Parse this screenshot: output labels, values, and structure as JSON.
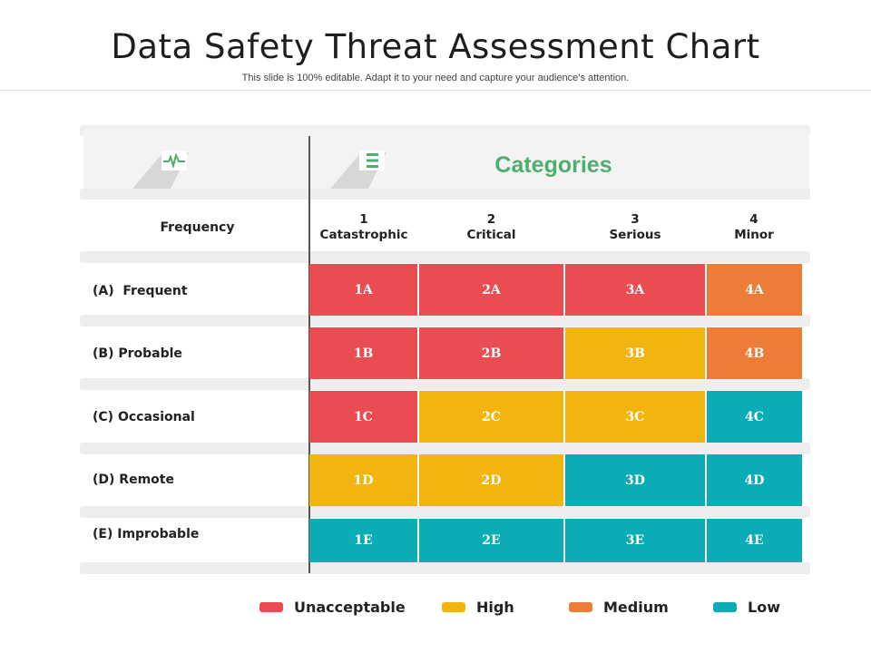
{
  "slide": {
    "title": "Data Safety Threat Assessment Chart",
    "subtitle": "This slide is 100% editable. Adapt it to your need and capture your audience’s attention."
  },
  "icons": {
    "frequency_icon": "pulse-icon",
    "categories_icon": "list-icon"
  },
  "header": {
    "categories": "Categories",
    "frequency": "Frequency"
  },
  "columns": [
    {
      "num": "1",
      "label": "Catastrophic"
    },
    {
      "num": "2",
      "label": "Critical"
    },
    {
      "num": "3",
      "label": "Serious"
    },
    {
      "num": "4",
      "label": "Minor"
    }
  ],
  "rows": [
    {
      "label": "(A)  Frequent",
      "cells": [
        "1A",
        "2A",
        "3A",
        "4A"
      ],
      "levels": [
        "unacceptable",
        "unacceptable",
        "unacceptable",
        "medium"
      ]
    },
    {
      "label": "(B) Probable",
      "cells": [
        "1B",
        "2B",
        "3B",
        "4B"
      ],
      "levels": [
        "unacceptable",
        "unacceptable",
        "high",
        "medium"
      ]
    },
    {
      "label": "(C) Occasional",
      "cells": [
        "1C",
        "2C",
        "3C",
        "4C"
      ],
      "levels": [
        "unacceptable",
        "high",
        "high",
        "low"
      ]
    },
    {
      "label": "(D) Remote",
      "cells": [
        "1D",
        "2D",
        "3D",
        "4D"
      ],
      "levels": [
        "high",
        "high",
        "low",
        "low"
      ]
    },
    {
      "label": "(E) Improbable",
      "cells": [
        "1E",
        "2E",
        "3E",
        "4E"
      ],
      "levels": [
        "low",
        "low",
        "low",
        "low"
      ]
    }
  ],
  "colors": {
    "unacceptable": "#ea4d51",
    "high": "#f2b50f",
    "medium": "#ed7d36",
    "low": "#0bacb6",
    "accent_green": "#4fae6e"
  },
  "legend": [
    {
      "key": "unacceptable",
      "label": "Unacceptable"
    },
    {
      "key": "high",
      "label": "High"
    },
    {
      "key": "medium",
      "label": "Medium"
    },
    {
      "key": "low",
      "label": "Low"
    }
  ]
}
